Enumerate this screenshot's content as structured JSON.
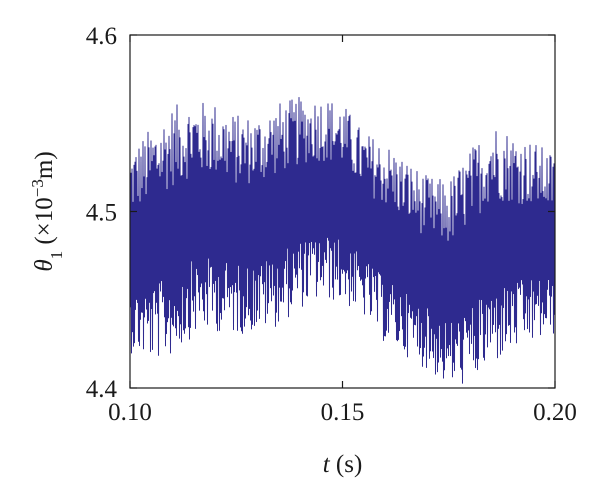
{
  "chart_data": {
    "type": "line",
    "title": "",
    "xlabel_var": "t",
    "xlabel_unit": " (s)",
    "ylabel_var": "θ",
    "ylabel_sub": "1",
    "ylabel_pre": " (×10",
    "ylabel_sup": "−3",
    "ylabel_post": "m)",
    "xlim": [
      0.1,
      0.2
    ],
    "ylim": [
      4.4,
      4.6
    ],
    "xticks": [
      0.1,
      0.15,
      0.2
    ],
    "yticks": [
      4.4,
      4.5,
      4.6
    ],
    "xtick_labels": [
      "0.10",
      "0.15",
      "0.20"
    ],
    "ytick_labels": [
      "4.4",
      "4.5",
      "4.6"
    ],
    "grid": false,
    "series": [
      {
        "color": "#2e2a8f",
        "style": "high-frequency oscillation",
        "samples_per_unit_x": 8500,
        "x": [
          0.1,
          0.105,
          0.11,
          0.115,
          0.12,
          0.125,
          0.13,
          0.135,
          0.14,
          0.145,
          0.15,
          0.155,
          0.16,
          0.165,
          0.17,
          0.175,
          0.18,
          0.185,
          0.19,
          0.195,
          0.2
        ],
        "y_max": [
          4.535,
          4.548,
          4.56,
          4.563,
          4.562,
          4.555,
          4.555,
          4.562,
          4.565,
          4.566,
          4.562,
          4.545,
          4.54,
          4.53,
          4.52,
          4.518,
          4.535,
          4.552,
          4.545,
          4.54,
          4.532
        ],
        "y_min": [
          4.42,
          4.415,
          4.418,
          4.43,
          4.432,
          4.43,
          4.432,
          4.435,
          4.445,
          4.45,
          4.448,
          4.44,
          4.425,
          4.418,
          4.41,
          4.4,
          4.402,
          4.412,
          4.42,
          4.425,
          4.43
        ]
      }
    ]
  }
}
